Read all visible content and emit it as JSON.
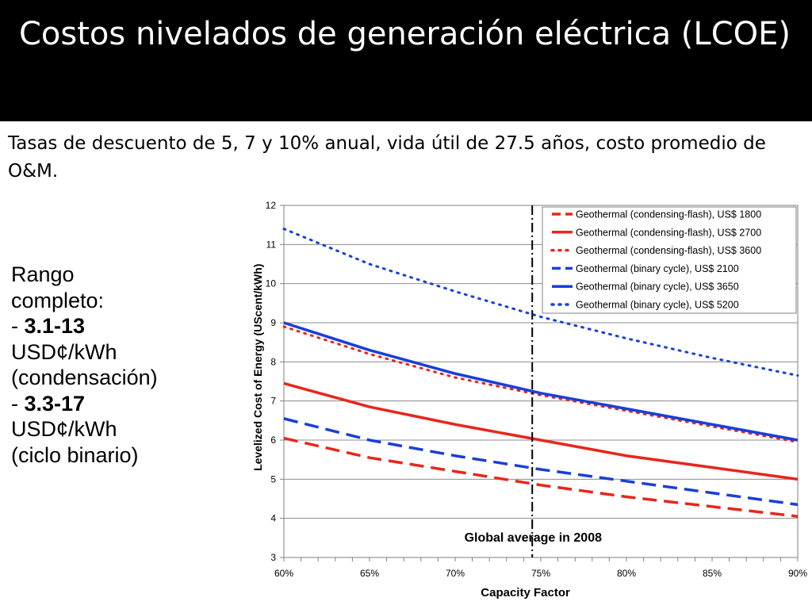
{
  "slide": {
    "title": "Costos nivelados de generación eléctrica (LCOE)",
    "subtitle": "Tasas de descuento de 5, 7 y 10% anual, vida útil de 27.5 años, costo promedio de O&M."
  },
  "range_note": {
    "heading_line1": "Rango",
    "heading_line2": "completo:",
    "item1_prefix": "- ",
    "item1_value": "3.1-13",
    "item1_unit": "USD¢/kWh",
    "item1_label": "(condensación)",
    "item2_prefix": "- ",
    "item2_value": "3.3-17",
    "item2_unit": "USD¢/kWh",
    "item2_label": "(ciclo binario)"
  },
  "chart_data": {
    "type": "line",
    "title": "",
    "xlabel": "Capacity Factor",
    "ylabel": "Levelized Cost of Energy (UScent/kWh)",
    "xlim": [
      60,
      90
    ],
    "ylim": [
      3,
      12
    ],
    "x_ticks": [
      60,
      65,
      70,
      75,
      80,
      85,
      90
    ],
    "x_tick_labels": [
      "60%",
      "65%",
      "70%",
      "75%",
      "80%",
      "85%",
      "90%"
    ],
    "y_ticks": [
      3,
      4,
      5,
      6,
      7,
      8,
      9,
      10,
      11,
      12
    ],
    "y_tick_labels": [
      "3",
      "4",
      "5",
      "6",
      "7",
      "8",
      "9",
      "10",
      "11",
      "12"
    ],
    "grid": {
      "horizontal": true,
      "vertical": false
    },
    "legend": {
      "placement": "top-right"
    },
    "x": [
      60,
      65,
      70,
      75,
      80,
      85,
      90
    ],
    "series": [
      {
        "name": "Geothermal (condensing-flash), US$ 1800",
        "color": "#e8261c",
        "dash": "dashed",
        "values": [
          6.05,
          5.55,
          5.2,
          4.85,
          4.55,
          4.3,
          4.05
        ]
      },
      {
        "name": "Geothermal (condensing-flash), US$ 2700",
        "color": "#e8261c",
        "dash": "solid",
        "values": [
          7.45,
          6.85,
          6.4,
          6.0,
          5.6,
          5.3,
          5.0
        ]
      },
      {
        "name": "Geothermal (condensing-flash), US$ 3600",
        "color": "#e8261c",
        "dash": "dotted",
        "values": [
          8.9,
          8.2,
          7.6,
          7.15,
          6.75,
          6.35,
          5.95
        ]
      },
      {
        "name": "Geothermal (binary cycle), US$ 2100",
        "color": "#1a3fd6",
        "dash": "dashed",
        "values": [
          6.55,
          6.0,
          5.6,
          5.25,
          4.95,
          4.65,
          4.35
        ]
      },
      {
        "name": "Geothermal (binary cycle), US$ 3650",
        "color": "#1a3fd6",
        "dash": "solid",
        "values": [
          9.0,
          8.3,
          7.7,
          7.2,
          6.8,
          6.4,
          6.0
        ]
      },
      {
        "name": "Geothermal (binary cycle), US$ 5200",
        "color": "#1a3fd6",
        "dash": "dotted",
        "values": [
          11.4,
          10.5,
          9.8,
          9.15,
          8.6,
          8.1,
          7.65
        ]
      }
    ],
    "annotation": {
      "text": "Global average  in 2008",
      "x": 74.5
    }
  }
}
